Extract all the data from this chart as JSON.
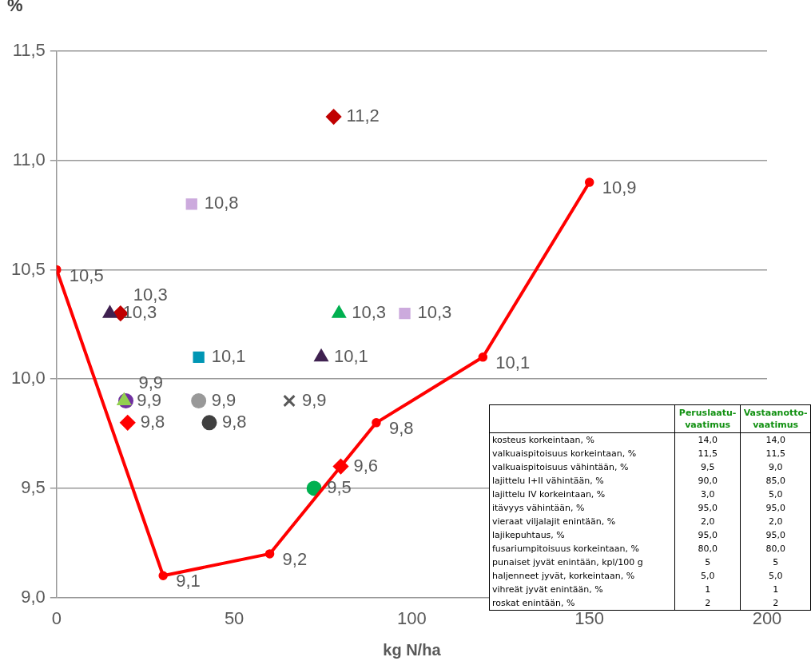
{
  "chart_data": [
    {
      "type": "scatter",
      "xlabel": "kg N/ha",
      "ylabel": "%",
      "xlim": [
        0,
        200
      ],
      "ylim": [
        9.0,
        11.5
      ],
      "xticks": [
        0,
        50,
        100,
        150,
        200
      ],
      "yticks": [
        {
          "value": 9.0,
          "label": "9,0"
        },
        {
          "value": 9.5,
          "label": "9,5"
        },
        {
          "value": 10.0,
          "label": "10,0"
        },
        {
          "value": 10.5,
          "label": "10,5"
        },
        {
          "value": 11.0,
          "label": "11,0"
        },
        {
          "value": 11.5,
          "label": "11,5"
        }
      ],
      "grid": "y",
      "series": [
        {
          "type": "line",
          "color": "#ff0000",
          "marker": "circle",
          "x": [
            0,
            30,
            60,
            90,
            120,
            150
          ],
          "values": [
            10.5,
            9.1,
            9.2,
            9.8,
            10.1,
            10.9
          ],
          "value_labels": [
            "10,5",
            "9,1",
            "9,2",
            "9,8",
            "10,1",
            "10,9"
          ]
        },
        {
          "type": "scatter",
          "color": "#c00000",
          "marker": "diamond",
          "x": [
            78
          ],
          "values": [
            11.2
          ],
          "value_labels": [
            "11,2"
          ]
        },
        {
          "type": "scatter",
          "color": "#ccaadd",
          "marker": "square",
          "x": [
            38
          ],
          "values": [
            10.8
          ],
          "value_labels": [
            "10,8"
          ]
        },
        {
          "type": "scatter",
          "color": "#ccaadd",
          "marker": "square",
          "x": [
            98
          ],
          "values": [
            10.3
          ],
          "value_labels": [
            "10,3"
          ]
        },
        {
          "type": "scatter",
          "color": "#00b050",
          "marker": "triangle",
          "x": [
            79.5
          ],
          "values": [
            10.3
          ],
          "value_labels": [
            "10,3"
          ]
        },
        {
          "type": "scatter",
          "color": "#3f2150",
          "marker": "triangle",
          "x": [
            15
          ],
          "values": [
            10.3
          ],
          "value_labels": [
            "10,3"
          ]
        },
        {
          "type": "scatter",
          "color": "#c00000",
          "marker": "diamond",
          "x": [
            18
          ],
          "values": [
            10.3
          ],
          "value_labels": [
            "10,3"
          ]
        },
        {
          "type": "scatter",
          "color": "#0096b4",
          "marker": "square",
          "x": [
            40
          ],
          "values": [
            10.1
          ],
          "value_labels": [
            "10,1"
          ]
        },
        {
          "type": "scatter",
          "color": "#3f2150",
          "marker": "triangle",
          "x": [
            74.5
          ],
          "values": [
            10.1
          ],
          "value_labels": [
            "10,1"
          ]
        },
        {
          "type": "scatter",
          "color": "#92d050",
          "marker": "triangle",
          "x": [
            19
          ],
          "values": [
            9.9
          ],
          "value_labels": [
            "9,9"
          ]
        },
        {
          "type": "scatter",
          "color": "#7030a0",
          "marker": "circle",
          "x": [
            19.5
          ],
          "values": [
            9.9
          ],
          "value_labels": [
            "9,9"
          ]
        },
        {
          "type": "scatter",
          "color": "#999999",
          "marker": "circle",
          "x": [
            40
          ],
          "values": [
            9.9
          ],
          "value_labels": [
            "9,9"
          ]
        },
        {
          "type": "scatter",
          "color": "#595959",
          "marker": "cross",
          "x": [
            65.5
          ],
          "values": [
            9.9
          ],
          "value_labels": [
            "9,9"
          ]
        },
        {
          "type": "scatter",
          "color": "#ff0000",
          "marker": "diamond",
          "x": [
            20
          ],
          "values": [
            9.8
          ],
          "value_labels": [
            "9,8"
          ]
        },
        {
          "type": "scatter",
          "color": "#404040",
          "marker": "circle",
          "x": [
            43
          ],
          "values": [
            9.8
          ],
          "value_labels": [
            "9,8"
          ]
        },
        {
          "type": "scatter",
          "color": "#00b050",
          "marker": "circle",
          "x": [
            72.5
          ],
          "values": [
            9.5
          ],
          "value_labels": [
            "9,5"
          ]
        },
        {
          "type": "scatter",
          "color": "#ff0000",
          "marker": "diamond",
          "x": [
            80
          ],
          "values": [
            9.6
          ],
          "value_labels": [
            "9,6"
          ]
        }
      ]
    },
    {
      "type": "other",
      "categories": [
        "Peruslaatu-\nvaatimus",
        "Vastaanotto-\nvaatimus"
      ],
      "y_categories": [
        "kosteus korkeintaan, %",
        "valkuaispitoisuus korkeintaan, %",
        "valkuaispitoisuus vähintään, %",
        "lajittelu I+II vähintään, %",
        "lajittelu IV korkeintaan, %",
        "itävyys vähintään, %",
        "vieraat viljalajit enintään, %",
        "lajikepuhtaus, %",
        "fusariumpitoisuus korkeintaan, %",
        "punaiset jyvät enintään, kpl/100 g",
        "haljenneet jyvät, korkeintaan, %",
        "vihreät jyvät enintään, %",
        "roskat enintään, %"
      ],
      "cell_labels": [
        [
          "14,0",
          "14,0"
        ],
        [
          "11,5",
          "11,5"
        ],
        [
          "9,5",
          "9,0"
        ],
        [
          "90,0",
          "85,0"
        ],
        [
          "3,0",
          "5,0"
        ],
        [
          "95,0",
          "95,0"
        ],
        [
          "2,0",
          "2,0"
        ],
        [
          "95,0",
          "95,0"
        ],
        [
          "80,0",
          "80,0"
        ],
        [
          "5",
          "5"
        ],
        [
          "5,0",
          "5,0"
        ],
        [
          "1",
          "1"
        ],
        [
          "2",
          "2"
        ]
      ]
    }
  ]
}
